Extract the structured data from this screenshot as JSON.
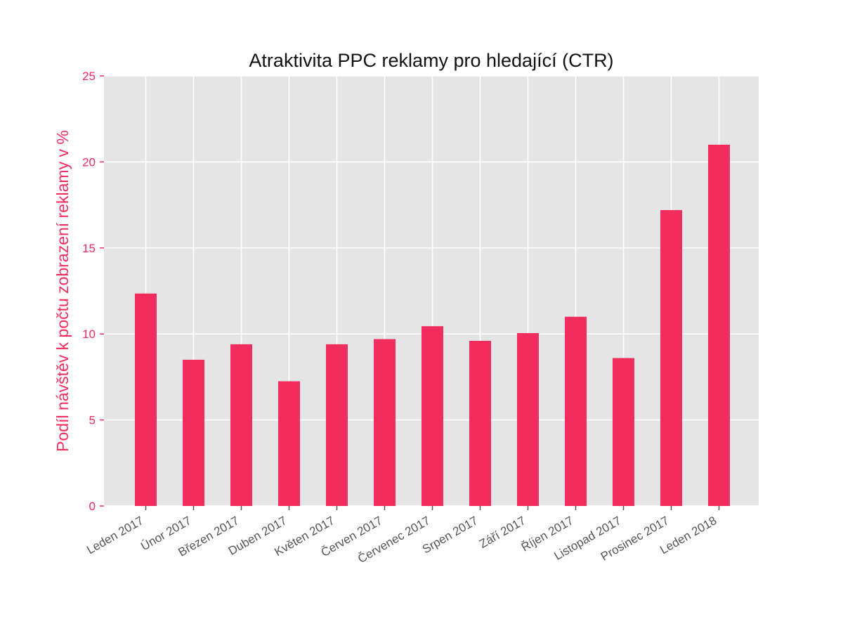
{
  "chart_data": {
    "type": "bar",
    "title": "Atraktivita PPC reklamy pro hledající (CTR)",
    "xlabel": "",
    "ylabel": "Podíl návštěv k počtu zobrazení reklamy v %",
    "categories": [
      "Leden 2017",
      "Únor 2017",
      "Březen 2017",
      "Duben 2017",
      "Květen 2017",
      "Červen 2017",
      "Červenec 2017",
      "Srpen 2017",
      "Září 2017",
      "Říjen 2017",
      "Listopad 2017",
      "Prosinec 2017",
      "Leden 2018"
    ],
    "values": [
      12.35,
      8.5,
      9.4,
      7.25,
      9.4,
      9.7,
      10.45,
      9.6,
      10.05,
      11.0,
      8.6,
      17.2,
      21.0
    ],
    "ylim": [
      0,
      25
    ],
    "yticks": [
      0,
      5,
      10,
      15,
      20,
      25
    ],
    "grid": true,
    "legend": "none"
  },
  "colors": {
    "bar": "#f12d5f",
    "y_axis_text": "#f12d5f",
    "x_tick_text": "#555555",
    "title_text": "#111111",
    "plot_background": "#e5e5e5",
    "grid": "#ffffff"
  }
}
